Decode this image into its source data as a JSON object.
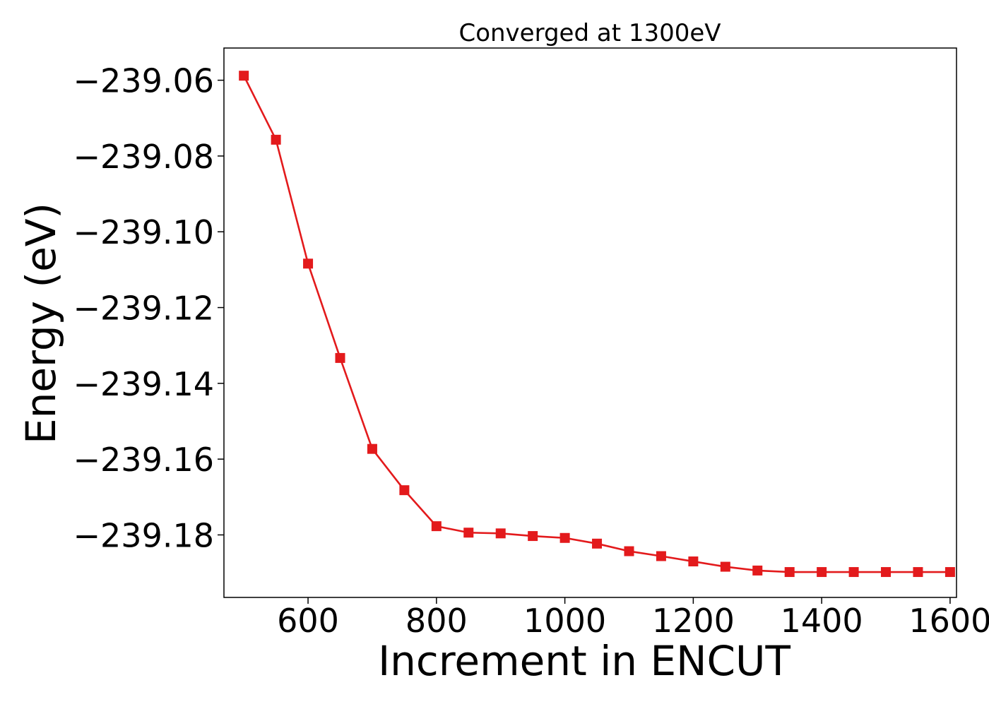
{
  "chart_data": {
    "type": "line",
    "title": "Converged at 1300eV",
    "xlabel": "Increment in ENCUT",
    "ylabel": "Energy (eV)",
    "xlim": [
      469,
      1610
    ],
    "ylim": [
      -239.1965,
      -239.0515
    ],
    "xticks": [
      600,
      800,
      1000,
      1200,
      1400,
      1600
    ],
    "xtick_labels": [
      "600",
      "800",
      "1000",
      "1200",
      "1400",
      "1600"
    ],
    "yticks": [
      -239.06,
      -239.08,
      -239.1,
      -239.12,
      -239.14,
      -239.16,
      -239.18
    ],
    "ytick_labels": [
      "−239.06",
      "−239.08",
      "−239.10",
      "−239.12",
      "−239.14",
      "−239.16",
      "−239.18"
    ],
    "grid": false,
    "legend": "none",
    "series": [
      {
        "color": "#e31a1c",
        "marker": "square",
        "x": [
          500,
          550,
          600,
          650,
          700,
          750,
          800,
          850,
          900,
          950,
          1000,
          1050,
          1100,
          1150,
          1200,
          1250,
          1300,
          1350,
          1400,
          1450,
          1500,
          1550,
          1600
        ],
        "y": [
          -239.0588,
          -239.0757,
          -239.1084,
          -239.1333,
          -239.1573,
          -239.1682,
          -239.1777,
          -239.1794,
          -239.1796,
          -239.1803,
          -239.1808,
          -239.1823,
          -239.1843,
          -239.1856,
          -239.187,
          -239.1884,
          -239.1894,
          -239.1898,
          -239.1898,
          -239.1898,
          -239.1898,
          -239.1898,
          -239.1898
        ]
      }
    ]
  }
}
